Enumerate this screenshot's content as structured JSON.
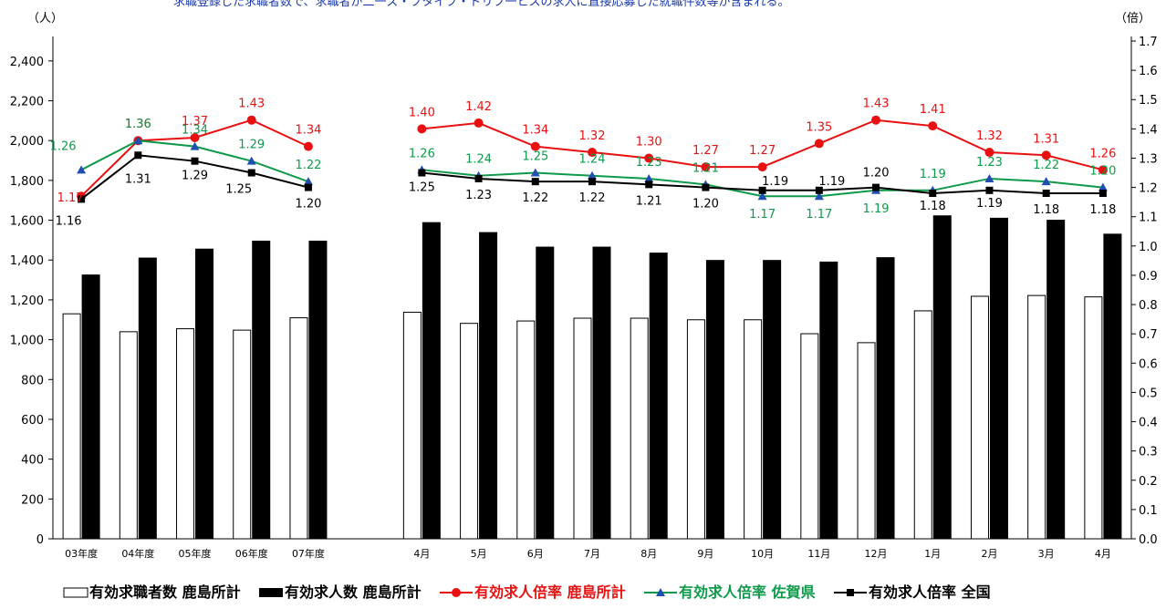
{
  "header_note": "求職登録した求職者数で、求職者が二一ズ・ブタイプ・ドリブ一ヒスの求人に直接応募した就職件数等が含まれる。",
  "chart_data": {
    "type": "bar+line",
    "y_left_unit": "（人）",
    "y_right_unit": "（倍）",
    "y_left_ticks": [
      "0",
      "200",
      "400",
      "600",
      "800",
      "1,000",
      "1,200",
      "1,400",
      "1,600",
      "1,800",
      "2,000",
      "2,200",
      "2,400"
    ],
    "y_right_ticks": [
      "0.0",
      "0.1",
      "0.2",
      "0.3",
      "0.4",
      "0.5",
      "0.6",
      "0.7",
      "0.8",
      "0.9",
      "1.0",
      "1.1",
      "1.2",
      "1.3",
      "1.4",
      "1.5",
      "1.6",
      "1.7"
    ],
    "ylim_left": [
      0,
      2500
    ],
    "ylim_right": [
      0,
      1.7
    ],
    "categories": [
      "03年度",
      "04年度",
      "05年度",
      "06年度",
      "07年度",
      "",
      "4月",
      "5月",
      "6月",
      "7月",
      "8月",
      "9月",
      "10月",
      "11月",
      "12月",
      "1月",
      "2月",
      "3月",
      "4月"
    ],
    "bar_series": [
      {
        "name": "有効求職者数 鹿島所計",
        "color": "#ffffff",
        "values": [
          1130,
          1040,
          1055,
          1048,
          1110,
          null,
          1138,
          1082,
          1094,
          1108,
          1108,
          1100,
          1100,
          1030,
          985,
          1145,
          1218,
          1222,
          1215
        ]
      },
      {
        "name": "有効求人数 鹿島所計",
        "color": "#000000",
        "values": [
          1325,
          1410,
          1455,
          1495,
          1495,
          null,
          1588,
          1538,
          1465,
          1465,
          1435,
          1398,
          1398,
          1390,
          1412,
          1622,
          1610,
          1600,
          1530
        ]
      }
    ],
    "line_series": [
      {
        "name": "有効求人倍率 鹿島所計",
        "color": "#e81010",
        "marker": "circle",
        "values": [
          1.17,
          1.36,
          1.37,
          1.43,
          1.34,
          null,
          1.4,
          1.42,
          1.34,
          1.32,
          1.3,
          1.27,
          1.27,
          1.35,
          1.43,
          1.41,
          1.32,
          1.31,
          1.26
        ],
        "labels": [
          "1.17",
          "1.36",
          "1.37",
          "1.43",
          "1.34",
          null,
          "1.40",
          "1.42",
          "1.34",
          "1.32",
          "1.30",
          "1.27",
          "1.27",
          "1.35",
          "1.43",
          "1.41",
          "1.32",
          "1.31",
          "1.26"
        ]
      },
      {
        "name": "有効求人倍率 佐賀県",
        "color": "#0e9a4a",
        "marker": "triangle",
        "values": [
          1.26,
          1.36,
          1.34,
          1.29,
          1.22,
          null,
          1.26,
          1.24,
          1.25,
          1.24,
          1.23,
          1.21,
          1.17,
          1.17,
          1.19,
          1.19,
          1.23,
          1.22,
          1.2
        ],
        "labels": [
          "1.26",
          "1.36",
          "1.34",
          "1.29",
          "1.22",
          null,
          "1.26",
          "1.24",
          "1.25",
          "1.24",
          "1.23",
          "1.21",
          "1.17",
          "1.17",
          "1.19",
          "1.19",
          "1.23",
          "1.22",
          "1.20"
        ]
      },
      {
        "name": "有効求人倍率 全国",
        "color": "#000000",
        "marker": "square",
        "values": [
          1.16,
          1.31,
          1.29,
          1.25,
          1.2,
          null,
          1.25,
          1.23,
          1.22,
          1.22,
          1.21,
          1.2,
          1.19,
          1.19,
          1.2,
          1.18,
          1.19,
          1.18,
          1.18
        ],
        "labels": [
          "1.16",
          "1.31",
          "1.29",
          "1.25",
          "1.20",
          null,
          "1.25",
          "1.23",
          "1.22",
          "1.22",
          "1.21",
          "1.20",
          "1.19",
          "1.19",
          "1.20",
          "1.18",
          "1.19",
          "1.18",
          "1.18"
        ]
      }
    ],
    "legend": [
      {
        "label": "有効求職者数 鹿島所計",
        "kind": "bar-white"
      },
      {
        "label": "有効求人数 鹿島所計",
        "kind": "bar-black"
      },
      {
        "label": "有効求人倍率 鹿島所計",
        "kind": "line-red"
      },
      {
        "label": "有効求人倍率 佐賀県",
        "kind": "line-green"
      },
      {
        "label": "有効求人倍率 全国",
        "kind": "line-black"
      }
    ],
    "legend_position": "bottom"
  }
}
